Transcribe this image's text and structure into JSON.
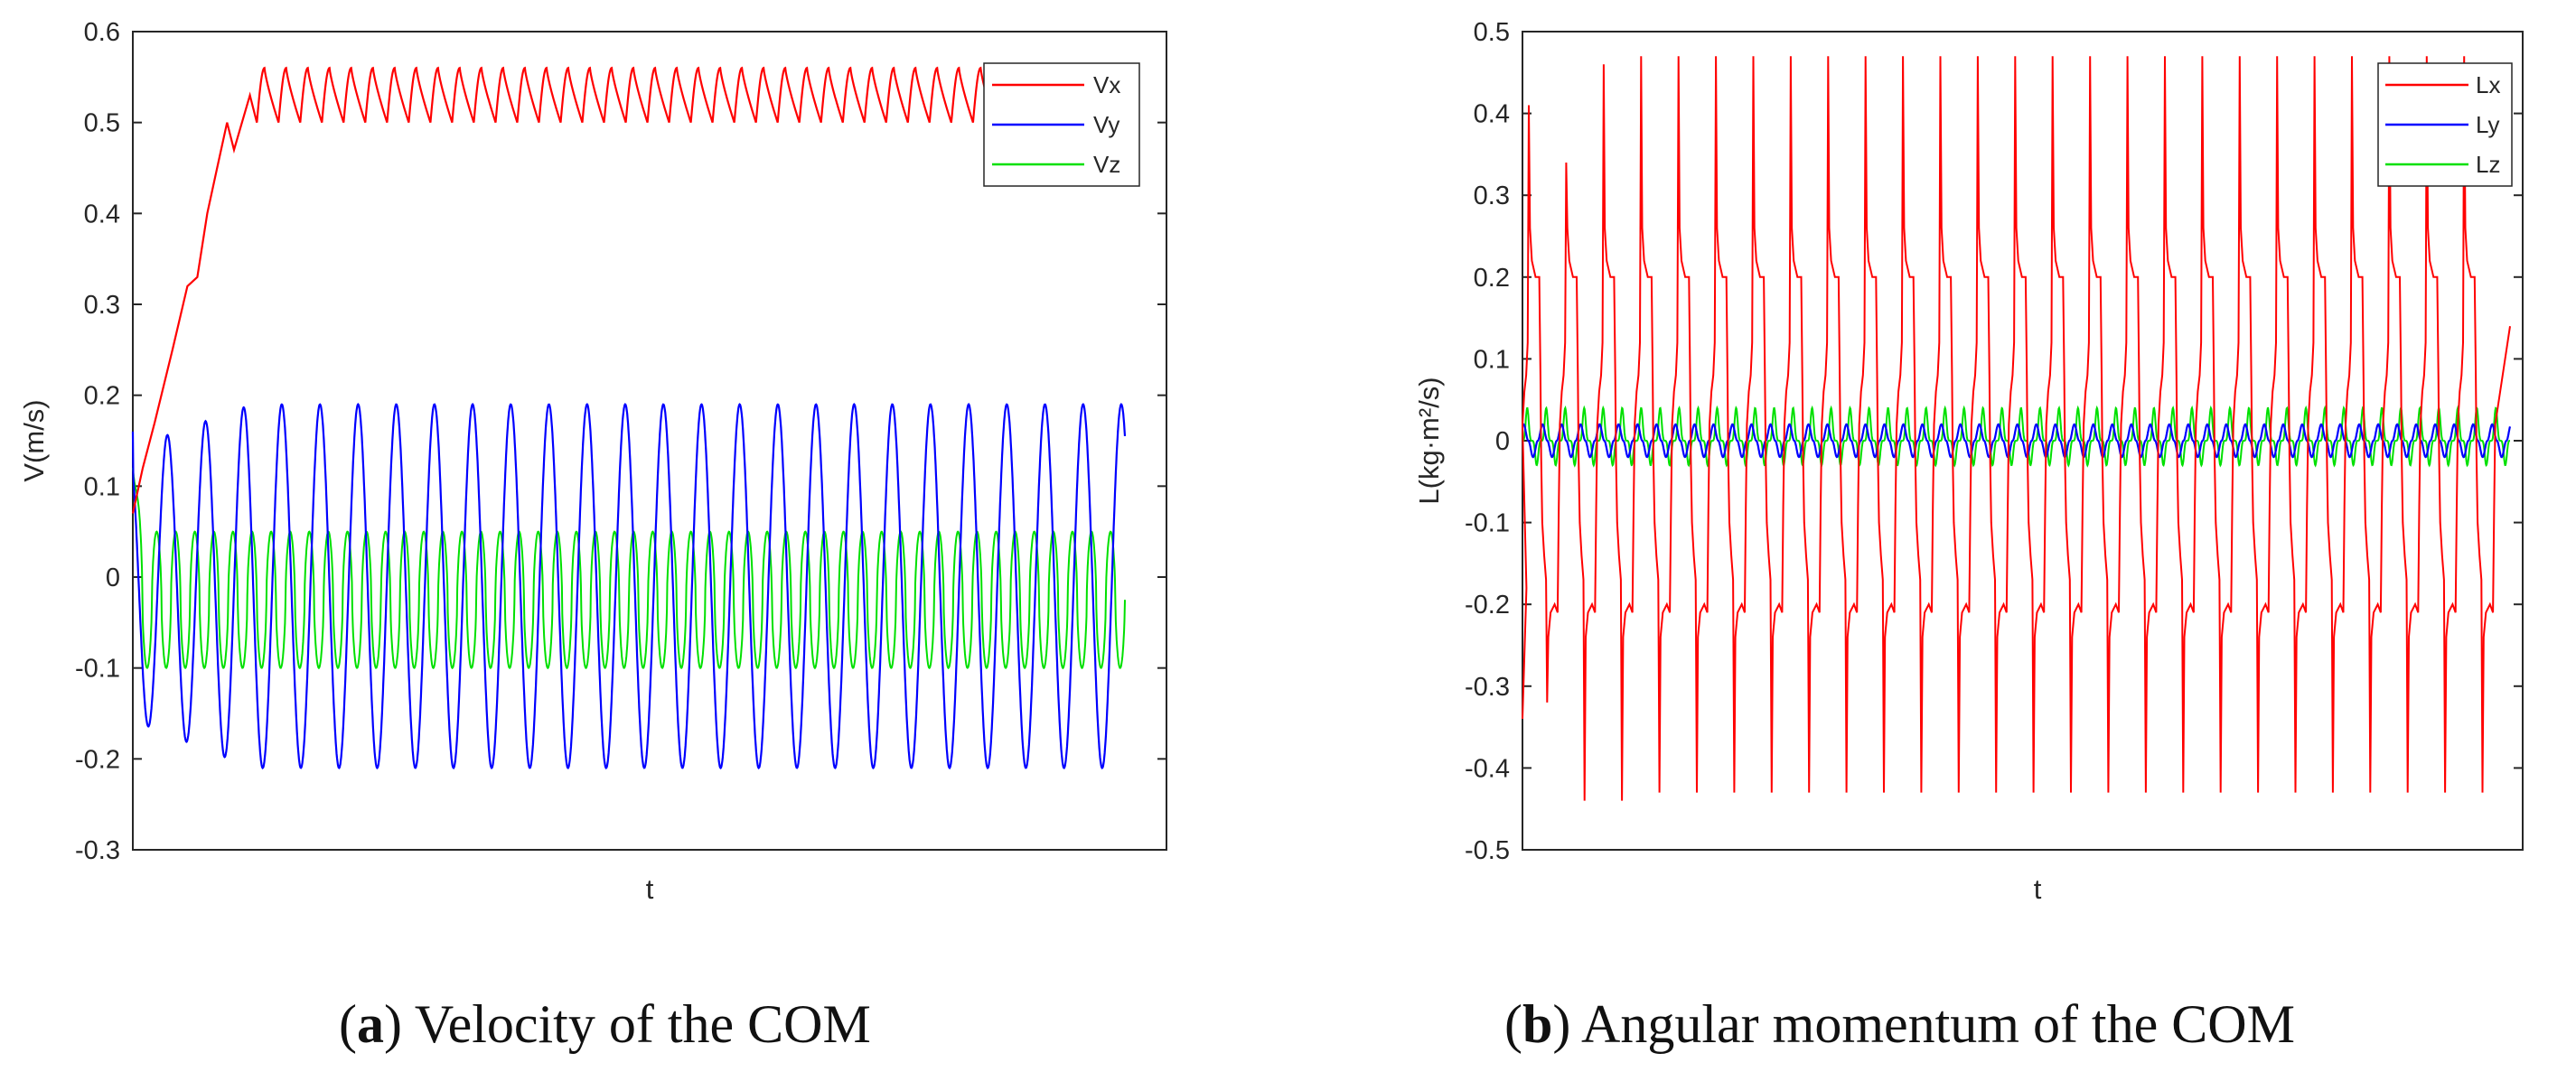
{
  "chart_data": [
    {
      "type": "line",
      "id": "velocity",
      "title": "",
      "xlabel": "t",
      "ylabel": "V(m/s)",
      "ylim": [
        -0.3,
        0.6
      ],
      "yticks": [
        "-0.3",
        "-0.2",
        "-0.1",
        "0",
        "0.1",
        "0.2",
        "0.3",
        "0.4",
        "0.5",
        "0.6"
      ],
      "x_tick_labels": [],
      "legend_position": "top-right",
      "series": [
        {
          "name": "Vx",
          "color": "#ff0000",
          "description": "ramps from ~0.07 to 0.5 during the first portion, then oscillates between 0.50 and 0.56",
          "ramp_points": [
            [
              0.0,
              0.07
            ],
            [
              0.01,
              0.12
            ],
            [
              0.022,
              0.17
            ],
            [
              0.04,
              0.25
            ],
            [
              0.055,
              0.32
            ],
            [
              0.065,
              0.33
            ],
            [
              0.075,
              0.4
            ],
            [
              0.085,
              0.45
            ],
            [
              0.095,
              0.5
            ],
            [
              0.102,
              0.47
            ],
            [
              0.11,
              0.5
            ],
            [
              0.118,
              0.53
            ],
            [
              0.125,
              0.5
            ]
          ],
          "steady_min": 0.5,
          "steady_max": 0.56,
          "steady_cycles": 40
        },
        {
          "name": "Vy",
          "color": "#0000ff",
          "description": "sinusoid around 0, amplitude ~0.2, ~26 cycles",
          "amplitude": 0.2,
          "mean": -0.01,
          "cycles": 26,
          "start_value": 0.16
        },
        {
          "name": "Vz",
          "color": "#00e000",
          "description": "fast oscillation around 0 between about -0.10 and 0.05",
          "min": -0.1,
          "max": 0.05,
          "cycles": 52,
          "start_value": 0.12
        }
      ]
    },
    {
      "type": "line",
      "id": "angular_momentum",
      "title": "",
      "xlabel": "t",
      "ylabel": "L(kg·m²/s)",
      "ylim": [
        -0.5,
        0.5
      ],
      "yticks": [
        "-0.5",
        "-0.4",
        "-0.3",
        "-0.2",
        "-0.1",
        "0",
        "0.1",
        "0.2",
        "0.3",
        "0.4",
        "0.5"
      ],
      "x_tick_labels": [],
      "legend_position": "top-right",
      "series": [
        {
          "name": "Lx",
          "color": "#ff0000",
          "description": "periodic spikes: alternate positive peaks ~0.47 and negative peaks ~-0.43 with plateaus near ±0.2",
          "peaks_pos": [
            0.41,
            0.34,
            0.46,
            0.47,
            0.47,
            0.47,
            0.47,
            0.47,
            0.47,
            0.47,
            0.47,
            0.47,
            0.47,
            0.47,
            0.47,
            0.47,
            0.47,
            0.47,
            0.47,
            0.47,
            0.47,
            0.47,
            0.47,
            0.47,
            0.47,
            0.47
          ],
          "peaks_neg": [
            -0.32,
            -0.44,
            -0.44,
            -0.43,
            -0.43,
            -0.43,
            -0.43,
            -0.43,
            -0.43,
            -0.43,
            -0.43,
            -0.43,
            -0.43,
            -0.43,
            -0.43,
            -0.43,
            -0.43,
            -0.43,
            -0.43,
            -0.43,
            -0.43,
            -0.43,
            -0.43,
            -0.43,
            -0.43,
            -0.43
          ],
          "plateau": 0.2,
          "end_value": 0.14
        },
        {
          "name": "Ly",
          "color": "#0000ff",
          "description": "small oscillation around 0, amplitude ~0.02",
          "amplitude": 0.02,
          "cycles": 52
        },
        {
          "name": "Lz",
          "color": "#00e000",
          "description": "small spikes around 0 between about -0.03 and 0.04",
          "min": -0.03,
          "max": 0.04,
          "cycles": 52
        }
      ]
    }
  ],
  "captions": [
    {
      "letter": "a",
      "text": "Velocity of the COM"
    },
    {
      "letter": "b",
      "text": "Angular momentum of the COM"
    }
  ]
}
